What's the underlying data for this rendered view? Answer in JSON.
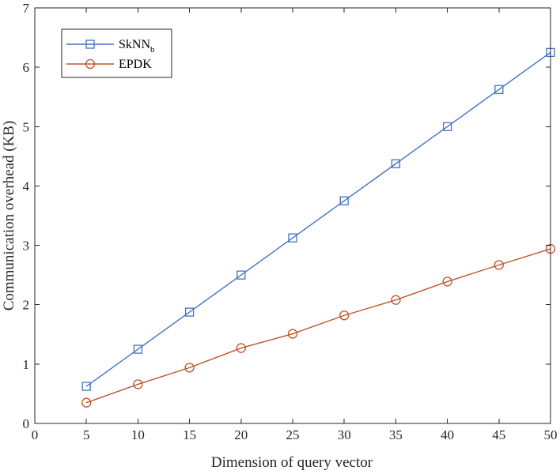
{
  "chart_data": {
    "type": "line",
    "x": [
      5,
      10,
      15,
      20,
      25,
      30,
      35,
      40,
      45,
      50
    ],
    "series": [
      {
        "name": "SkNN",
        "name_subscript": "b",
        "marker": "square",
        "color": "#4472C4",
        "values": [
          0.625,
          1.25,
          1.875,
          2.5,
          3.125,
          3.75,
          4.375,
          5.0,
          5.625,
          6.25
        ]
      },
      {
        "name": "EPDK",
        "marker": "circle",
        "color": "#C0532B",
        "values": [
          0.35,
          0.66,
          0.94,
          1.27,
          1.51,
          1.82,
          2.08,
          2.39,
          2.67,
          2.94
        ]
      }
    ],
    "title": "",
    "xlabel": "Dimension of query vector",
    "ylabel": "Communication overhead (KB)",
    "xlim": [
      0,
      50
    ],
    "ylim": [
      0,
      7
    ],
    "xticks": [
      "0",
      "5",
      "10",
      "15",
      "20",
      "25",
      "30",
      "35",
      "40",
      "45",
      "50"
    ],
    "yticks": [
      "0",
      "1",
      "2",
      "3",
      "4",
      "5",
      "6",
      "7"
    ],
    "grid": false,
    "legend": "top-left"
  }
}
